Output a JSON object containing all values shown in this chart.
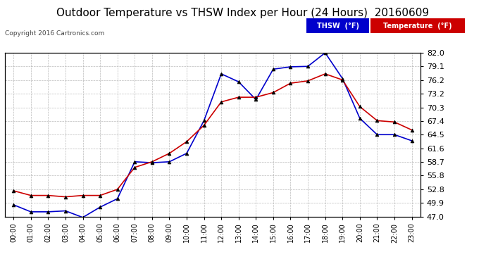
{
  "title": "Outdoor Temperature vs THSW Index per Hour (24 Hours)  20160609",
  "copyright": "Copyright 2016 Cartronics.com",
  "hours": [
    "00:00",
    "01:00",
    "02:00",
    "03:00",
    "04:00",
    "05:00",
    "06:00",
    "07:00",
    "08:00",
    "09:00",
    "10:00",
    "11:00",
    "12:00",
    "13:00",
    "14:00",
    "15:00",
    "16:00",
    "17:00",
    "18:00",
    "19:00",
    "20:00",
    "21:00",
    "22:00",
    "23:00"
  ],
  "temperature": [
    52.5,
    51.5,
    51.5,
    51.2,
    51.5,
    51.5,
    52.8,
    57.5,
    58.7,
    60.5,
    63.0,
    66.5,
    71.5,
    72.5,
    72.5,
    73.5,
    75.5,
    76.0,
    77.5,
    76.2,
    70.5,
    67.5,
    67.2,
    65.5
  ],
  "thsw": [
    49.5,
    48.0,
    48.0,
    48.2,
    46.8,
    49.0,
    50.8,
    58.7,
    58.5,
    58.7,
    60.5,
    67.5,
    77.5,
    75.8,
    72.0,
    78.5,
    79.0,
    79.1,
    82.0,
    76.5,
    68.0,
    64.5,
    64.5,
    63.2
  ],
  "ylim": [
    47.0,
    82.0
  ],
  "yticks": [
    47.0,
    49.9,
    52.8,
    55.8,
    58.7,
    61.6,
    64.5,
    67.4,
    70.3,
    73.2,
    76.2,
    79.1,
    82.0
  ],
  "temp_color": "#cc0000",
  "thsw_color": "#0000cc",
  "bg_color": "#ffffff",
  "plot_bg": "#ffffff",
  "grid_color": "#aaaaaa",
  "title_fontsize": 11,
  "legend_thsw_bg": "#0000cc",
  "legend_temp_bg": "#cc0000"
}
